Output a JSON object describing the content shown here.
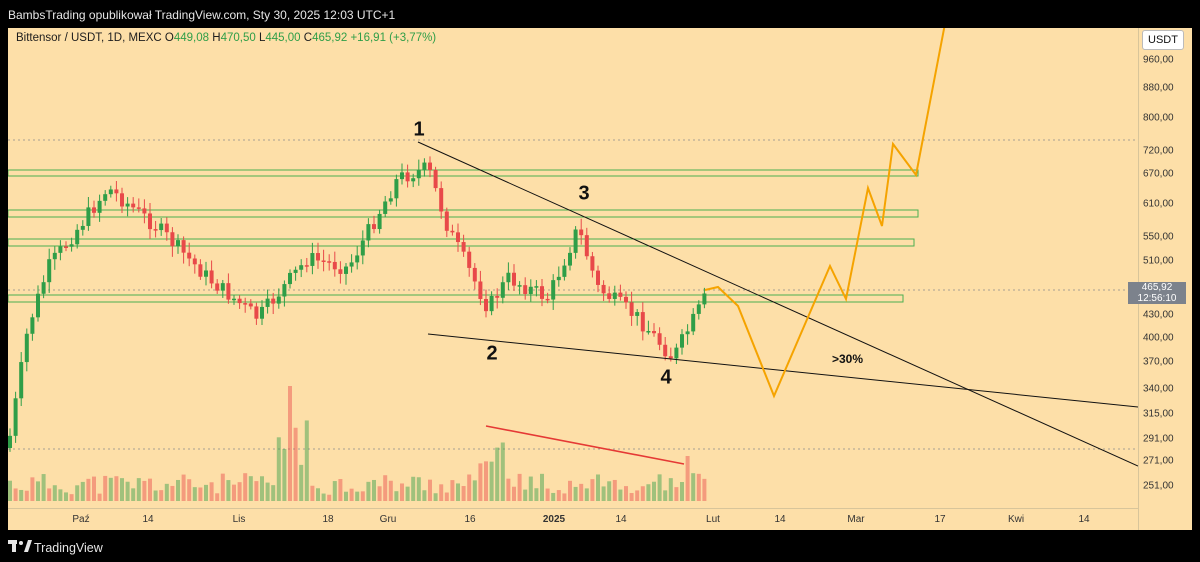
{
  "header": {
    "publisher_line": "BambsTrading opublikował TradingView.com, Sty 30, 2025 12:03 UTC+1"
  },
  "legend": {
    "symbol": "Bittensor / USDT, 1D, MEXC",
    "o_label": "O",
    "o_value": "449,08",
    "h_label": "H",
    "h_value": "470,50",
    "l_label": "L",
    "l_value": "445,00",
    "c_label": "C",
    "c_value": "465,92",
    "change": "+16,91 (+3,77%)"
  },
  "axis": {
    "currency": "USDT",
    "price_ticks": [
      "960,00",
      "880,00",
      "800,00",
      "720,00",
      "670,00",
      "610,00",
      "550,00",
      "510,00",
      "470,00",
      "430,00",
      "400,00",
      "370,00",
      "340,00",
      "315,00",
      "291,00",
      "271,00",
      "251,00"
    ],
    "time_ticks": [
      {
        "label": "Paź",
        "bold": false
      },
      {
        "label": "14",
        "bold": false
      },
      {
        "label": "Lis",
        "bold": false
      },
      {
        "label": "18",
        "bold": false
      },
      {
        "label": "Gru",
        "bold": false
      },
      {
        "label": "16",
        "bold": false
      },
      {
        "label": "2025",
        "bold": true
      },
      {
        "label": "14",
        "bold": false
      },
      {
        "label": "Lut",
        "bold": false
      },
      {
        "label": "14",
        "bold": false
      },
      {
        "label": "Mar",
        "bold": false
      },
      {
        "label": "17",
        "bold": false
      },
      {
        "label": "Kwi",
        "bold": false
      },
      {
        "label": "14",
        "bold": false
      }
    ]
  },
  "last_price": {
    "value": "465,92",
    "countdown": "12:56:10"
  },
  "annotations": {
    "wave_1": "1",
    "wave_2": "2",
    "wave_3": "3",
    "wave_4": "4",
    "target_pct": ">30%"
  },
  "colors": {
    "background": "#fddfa8",
    "up": "#2f9e48",
    "down": "#e84949",
    "projection": "#f5a300",
    "zone": "#4caf50",
    "trendline": "#111111",
    "volume_divergence": "#e53935"
  },
  "footer": {
    "brand": "TradingView"
  }
}
